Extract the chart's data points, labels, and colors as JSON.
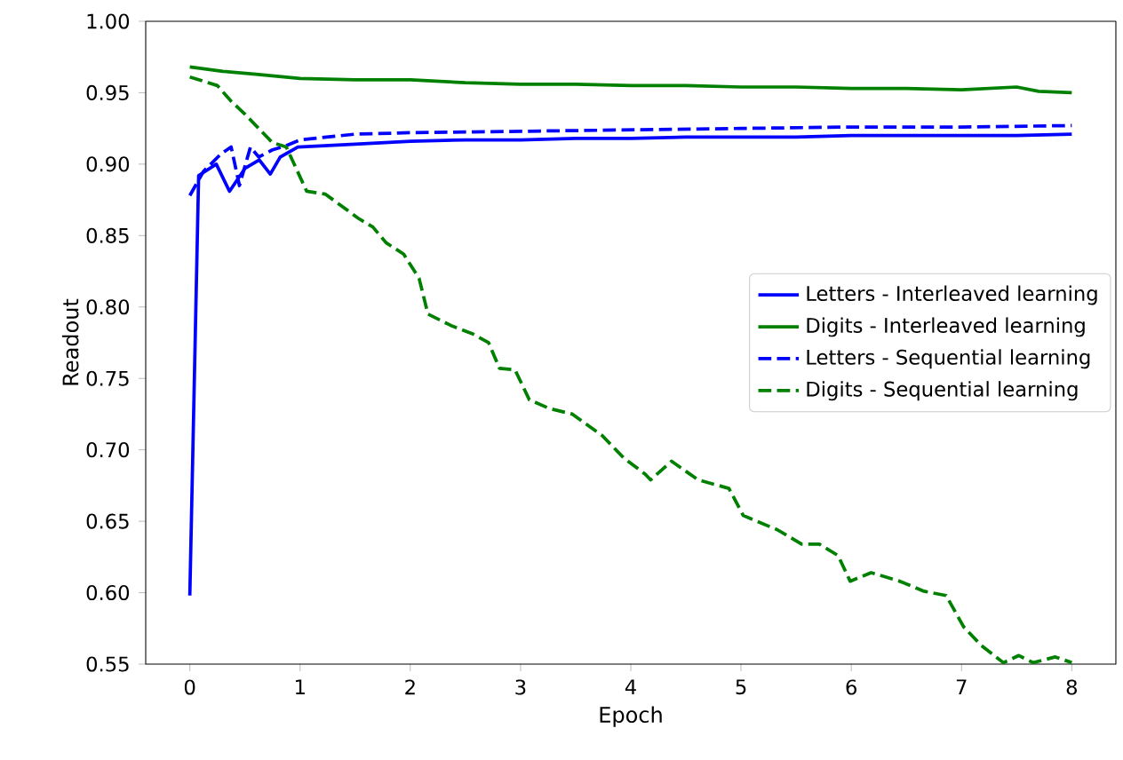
{
  "chart_data": {
    "type": "line",
    "xlabel": "Epoch",
    "ylabel": "Readout",
    "xlim": [
      -0.4,
      8.4
    ],
    "ylim": [
      0.55,
      1.0
    ],
    "xticks": [
      0,
      1,
      2,
      3,
      4,
      5,
      6,
      7,
      8
    ],
    "yticks": [
      {
        "value": 0.55,
        "label": "0.55"
      },
      {
        "value": 0.6,
        "label": "0.60"
      },
      {
        "value": 0.65,
        "label": "0.65"
      },
      {
        "value": 0.7,
        "label": "0.70"
      },
      {
        "value": 0.75,
        "label": "0.75"
      },
      {
        "value": 0.8,
        "label": "0.80"
      },
      {
        "value": 0.85,
        "label": "0.85"
      },
      {
        "value": 0.9,
        "label": "0.90"
      },
      {
        "value": 0.95,
        "label": "0.95"
      },
      {
        "value": 1.0,
        "label": "1.00"
      }
    ],
    "legend": "right",
    "grid": false,
    "marker": "none",
    "series": [
      {
        "name": "Letters - Interleaved learning",
        "color": "#0000ff",
        "line_style": "solid",
        "x": [
          0,
          0.08,
          0.24,
          0.36,
          0.5,
          0.63,
          0.73,
          0.82,
          0.98,
          1.5,
          2,
          2.5,
          3,
          3.5,
          4,
          4.5,
          5,
          5.5,
          6,
          6.5,
          7,
          7.5,
          8
        ],
        "values": [
          0.598,
          0.892,
          0.9,
          0.881,
          0.897,
          0.903,
          0.893,
          0.905,
          0.912,
          0.914,
          0.916,
          0.917,
          0.917,
          0.918,
          0.918,
          0.919,
          0.919,
          0.919,
          0.92,
          0.92,
          0.92,
          0.92,
          0.921
        ]
      },
      {
        "name": "Digits - Interleaved learning",
        "color": "#008000",
        "line_style": "solid",
        "x": [
          0,
          0.3,
          0.6,
          1,
          1.5,
          2,
          2.5,
          3,
          3.5,
          4,
          4.5,
          5,
          5.5,
          6,
          6.5,
          7,
          7.5,
          7.7,
          8
        ],
        "values": [
          0.968,
          0.965,
          0.963,
          0.96,
          0.959,
          0.959,
          0.957,
          0.956,
          0.956,
          0.955,
          0.955,
          0.954,
          0.954,
          0.953,
          0.953,
          0.952,
          0.954,
          0.951,
          0.95
        ]
      },
      {
        "name": "Letters - Sequential learning",
        "color": "#0000ff",
        "line_style": "dashed",
        "x": [
          0,
          0.125,
          0.28,
          0.375,
          0.45,
          0.55,
          0.625,
          0.75,
          0.875,
          1,
          1.5,
          2,
          3,
          4,
          5,
          6,
          7,
          8
        ],
        "values": [
          0.878,
          0.895,
          0.907,
          0.912,
          0.885,
          0.912,
          0.905,
          0.91,
          0.913,
          0.917,
          0.921,
          0.922,
          0.923,
          0.924,
          0.925,
          0.926,
          0.926,
          0.927
        ]
      },
      {
        "name": "Digits - Sequential learning",
        "color": "#008000",
        "line_style": "dashed",
        "x": [
          0,
          0.125,
          0.25,
          0.375,
          0.5,
          0.625,
          0.75,
          0.875,
          1.06,
          1.23,
          1.53,
          1.66,
          1.78,
          1.94,
          2.08,
          2.16,
          2.37,
          2.57,
          2.71,
          2.81,
          2.95,
          3.08,
          3.26,
          3.47,
          3.74,
          3.94,
          4.13,
          4.18,
          4.37,
          4.61,
          4.89,
          5.02,
          5.33,
          5.55,
          5.71,
          5.88,
          5.99,
          6.18,
          6.44,
          6.66,
          6.86,
          7.02,
          7.18,
          7.38,
          7.52,
          7.65,
          7.85,
          8
        ],
        "values": [
          0.961,
          0.958,
          0.955,
          0.944,
          0.935,
          0.925,
          0.915,
          0.912,
          0.881,
          0.879,
          0.862,
          0.856,
          0.845,
          0.837,
          0.82,
          0.795,
          0.787,
          0.781,
          0.775,
          0.757,
          0.756,
          0.735,
          0.729,
          0.725,
          0.71,
          0.694,
          0.683,
          0.679,
          0.692,
          0.679,
          0.673,
          0.654,
          0.644,
          0.634,
          0.634,
          0.626,
          0.608,
          0.614,
          0.608,
          0.601,
          0.598,
          0.576,
          0.563,
          0.551,
          0.556,
          0.551,
          0.555,
          0.551
        ]
      }
    ]
  }
}
